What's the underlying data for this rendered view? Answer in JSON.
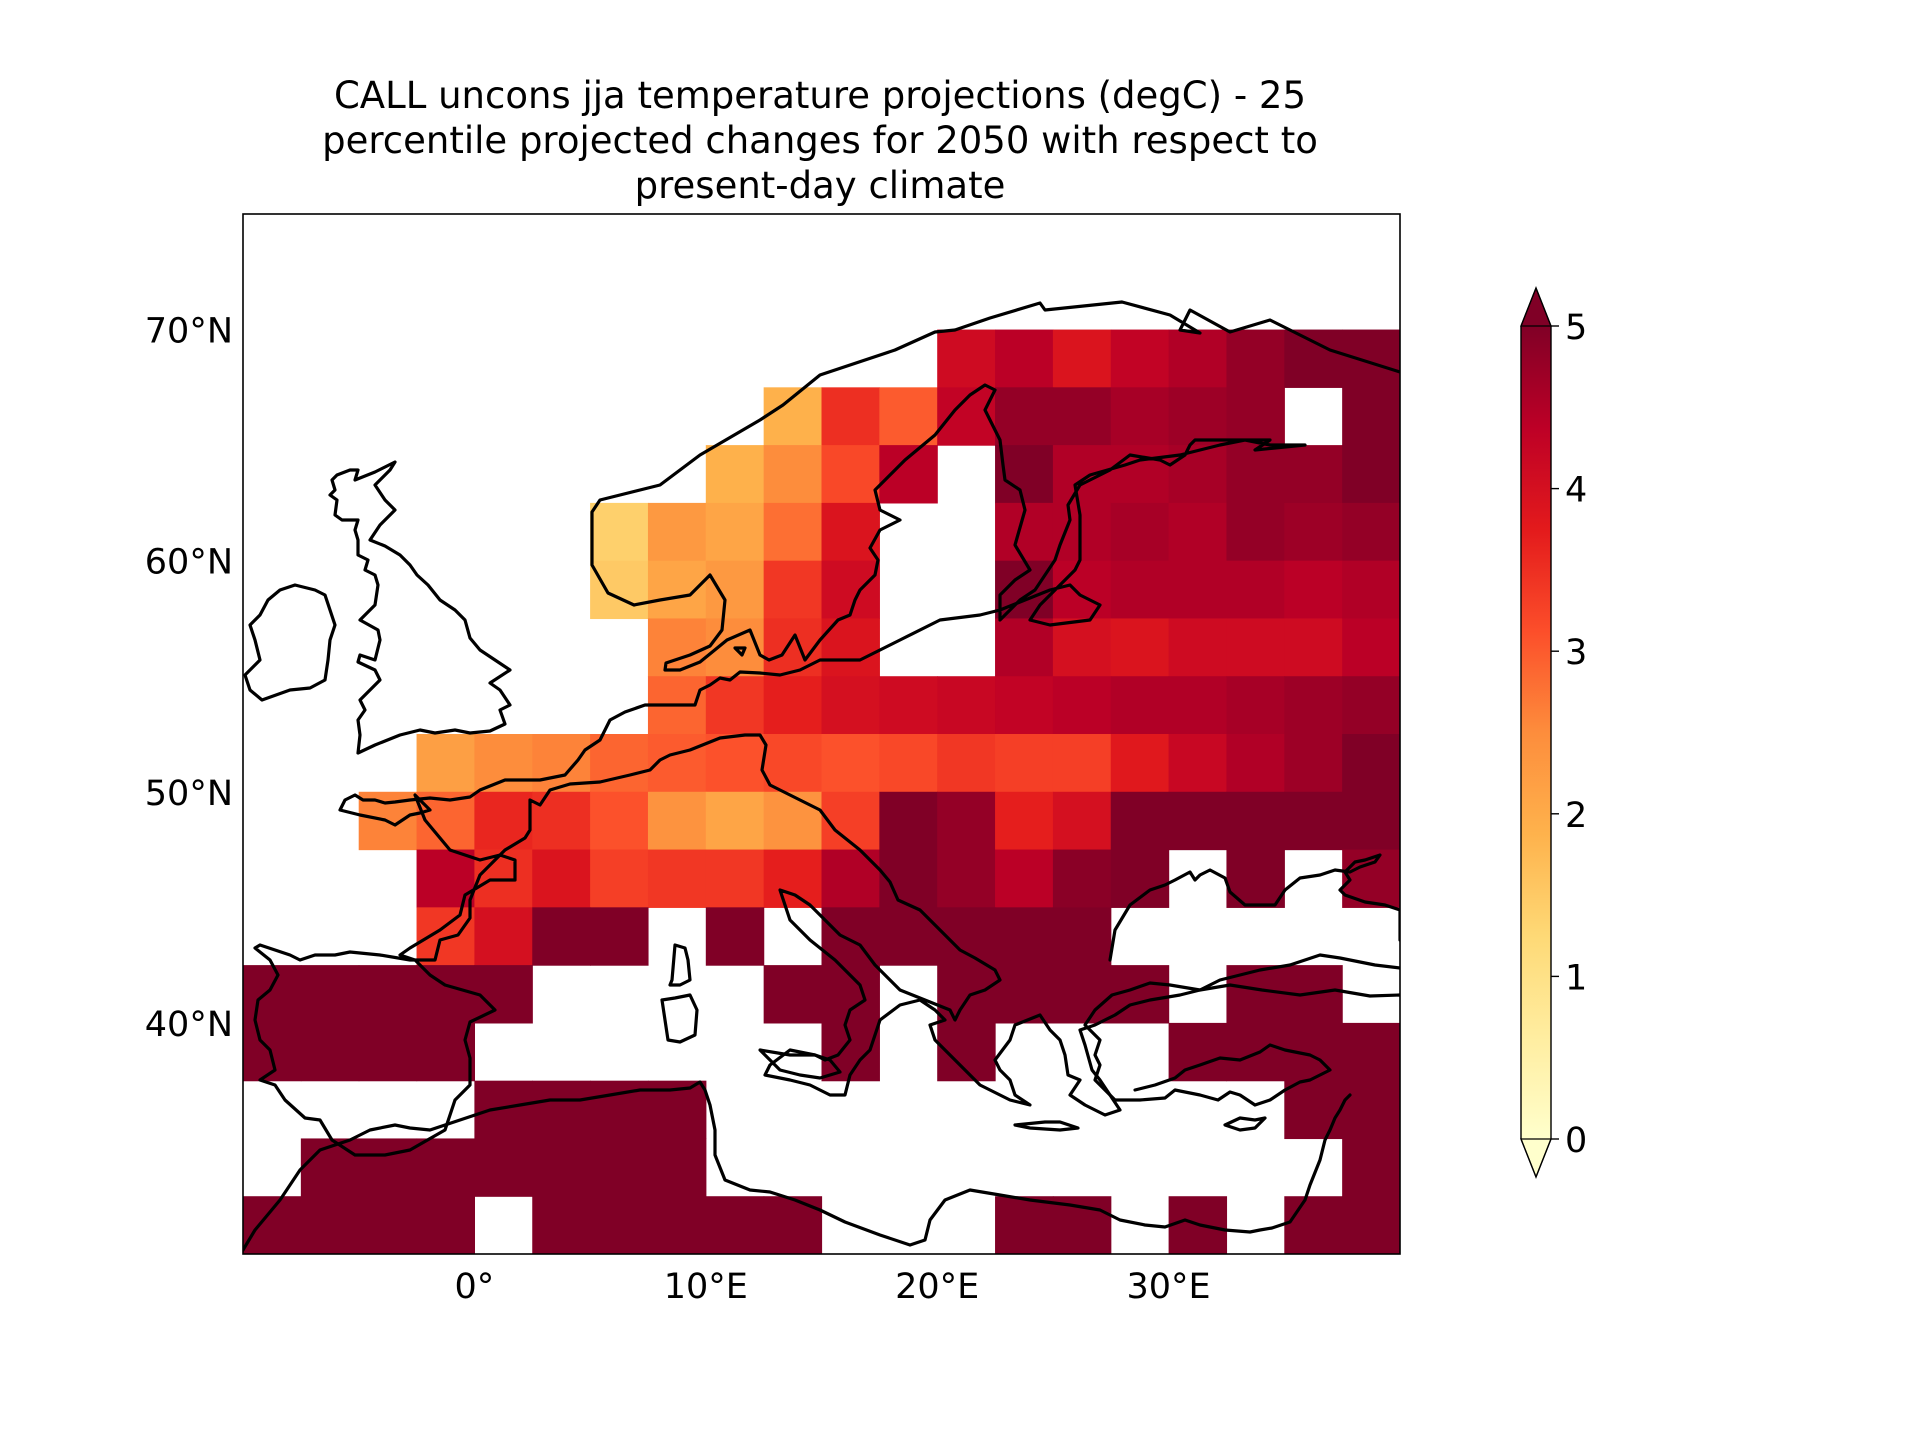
{
  "title_lines": [
    "CALL uncons jja temperature projections (degC) - 25",
    "percentile projected changes for 2050 with respect to",
    "present-day climate"
  ],
  "map": {
    "extent": {
      "lon": [
        -10,
        40
      ],
      "lat": [
        30,
        75
      ]
    },
    "grid_resolution_deg": 2.5,
    "lat_ticks": [
      {
        "value": 70,
        "label": "70°N"
      },
      {
        "value": 60,
        "label": "60°N"
      },
      {
        "value": 50,
        "label": "50°N"
      },
      {
        "value": 40,
        "label": "40°N"
      }
    ],
    "lon_ticks": [
      {
        "value": 0,
        "label": "0°"
      },
      {
        "value": 10,
        "label": "10°E"
      },
      {
        "value": 20,
        "label": "20°E"
      },
      {
        "value": 30,
        "label": "30°E"
      }
    ],
    "grid_rows": [
      {
        "lat": 68.75,
        "values": [
          null,
          null,
          null,
          null,
          null,
          null,
          null,
          null,
          null,
          null,
          null,
          null,
          null,
          null,
          null,
          null,
          null,
          null,
          null,
          null,
          null,
          null,
          null,
          null,
          null,
          null,
          null,
          null,
          null,
          null,
          null,
          null,
          null,
          null,
          null,
          null,
          null,
          null,
          null,
          null,
          null,
          null,
          4.1,
          4.4,
          3.9,
          4.3,
          4.5,
          4.8,
          5.0,
          5.0
        ]
      },
      {
        "lat": 66.25,
        "values": [
          null,
          null,
          null,
          null,
          null,
          null,
          null,
          null,
          null,
          null,
          null,
          null,
          null,
          null,
          null,
          null,
          null,
          null,
          null,
          null,
          null,
          null,
          null,
          null,
          null,
          null,
          null,
          null,
          null,
          null,
          null,
          null,
          null,
          null,
          null,
          null,
          null,
          null,
          1.9,
          3.5,
          3.0,
          4.3,
          4.8,
          4.8,
          4.6,
          4.7,
          4.8,
          null,
          5.0
        ]
      },
      {
        "lat": 63.75,
        "values": [
          null,
          null,
          null,
          null,
          null,
          null,
          null,
          null,
          null,
          null,
          null,
          null,
          null,
          null,
          null,
          null,
          null,
          null,
          null,
          null,
          null,
          null,
          null,
          null,
          null,
          null,
          null,
          null,
          null,
          null,
          null,
          null,
          null,
          null,
          null,
          null,
          null,
          1.9,
          2.5,
          3.2,
          4.4,
          null,
          5.0,
          4.5,
          4.5,
          4.6,
          4.8,
          4.8,
          5.0
        ]
      },
      {
        "lat": 61.25,
        "values": [
          null,
          null,
          null,
          null,
          null,
          null,
          null,
          null,
          null,
          null,
          null,
          null,
          null,
          null,
          null,
          null,
          null,
          null,
          null,
          null,
          null,
          null,
          null,
          null,
          null,
          null,
          null,
          null,
          null,
          null,
          null,
          null,
          null,
          null,
          null,
          1.4,
          2.3,
          2.1,
          2.8,
          3.9,
          null,
          null,
          4.5,
          4.5,
          4.6,
          4.5,
          4.8,
          4.7,
          4.8
        ]
      },
      {
        "lat": 58.75,
        "values": [
          null,
          null,
          null,
          null,
          null,
          null,
          null,
          null,
          null,
          null,
          null,
          null,
          null,
          null,
          null,
          null,
          null,
          null,
          null,
          null,
          null,
          null,
          null,
          null,
          null,
          null,
          null,
          null,
          null,
          null,
          null,
          null,
          null,
          null,
          null,
          1.5,
          2.1,
          2.3,
          3.4,
          4.1,
          null,
          null,
          5.0,
          4.4,
          4.5,
          4.5,
          4.5,
          4.4,
          4.5
        ]
      },
      {
        "lat": 56.25,
        "values": [
          null,
          null,
          null,
          1.6,
          null,
          null,
          null,
          null,
          null,
          null,
          null,
          null,
          null,
          null,
          null,
          null,
          null,
          null,
          null,
          null,
          null,
          null,
          null,
          null,
          null,
          null,
          null,
          null,
          null,
          null,
          null,
          null,
          null,
          null,
          null,
          null,
          2.6,
          2.5,
          3.5,
          3.9,
          null,
          null,
          4.5,
          4.0,
          3.9,
          4.1,
          4.1,
          4.1,
          4.4
        ]
      },
      {
        "lat": 53.75,
        "values": [
          1.3,
          1.4,
          null,
          2.1,
          2.5,
          null,
          null,
          null,
          null,
          null,
          null,
          null,
          null,
          null,
          null,
          null,
          null,
          null,
          null,
          null,
          null,
          null,
          null,
          null,
          null,
          null,
          null,
          null,
          null,
          null,
          null,
          null,
          null,
          null,
          null,
          null,
          2.9,
          3.4,
          3.7,
          4.0,
          4.1,
          4.2,
          4.3,
          4.4,
          4.5,
          4.5,
          4.6,
          4.7,
          4.8
        ]
      },
      {
        "lat": 51.25,
        "values": [
          null,
          null,
          null,
          2.2,
          2.5,
          2.6,
          2.9,
          3.0,
          3.1,
          3.2,
          3.1,
          3.2,
          3.4,
          3.3,
          3.3,
          3.8,
          4.2,
          4.5,
          4.7,
          5.0,
          5.0,
          5.0,
          5.0
        ]
      },
      {
        "lat": 48.75,
        "values": [
          null,
          null,
          2.6,
          2.9,
          3.6,
          3.5,
          3.1,
          2.4,
          2.1,
          2.4,
          3.3,
          5.0,
          4.8,
          3.7,
          4.0,
          5.0,
          5.0,
          5.0,
          5.0,
          5.0
        ]
      },
      {
        "lat": 46.25,
        "values": [
          null,
          null,
          null,
          4.4,
          3.5,
          3.9,
          3.3,
          3.4,
          3.4,
          3.7,
          4.5,
          5.0,
          4.8,
          4.4,
          4.9,
          5.0,
          null,
          5.0,
          null,
          4.8,
          null,
          5.0
        ]
      },
      {
        "lat": 43.75,
        "values": [
          null,
          null,
          null,
          3.4,
          4.0,
          5.0,
          5.0,
          null,
          5.0,
          null,
          5.0,
          5.0,
          5.0,
          5.0,
          5.0,
          null,
          null,
          null,
          null,
          null
        ]
      },
      {
        "lat": 41.25,
        "values": [
          5.0,
          5.0,
          5.0,
          5.0,
          5.0,
          null,
          null,
          null,
          null,
          5.0,
          5.0,
          null,
          5.0,
          5.0,
          5.0,
          5.0,
          null,
          5.0,
          5.0,
          null
        ]
      },
      {
        "lat": 38.75,
        "values": [
          5.0,
          5.0,
          5.0,
          5.0,
          null,
          null,
          null,
          null,
          null,
          null,
          5.0,
          null,
          5.0,
          null,
          null,
          null,
          5.0,
          5.0,
          5.0,
          5.0
        ]
      },
      {
        "lat": 36.25,
        "values": [
          null,
          null,
          null,
          null,
          5.0,
          5.0,
          5.0,
          5.0,
          null,
          null,
          null,
          null,
          null,
          null,
          null,
          null,
          null,
          null,
          5.0,
          5.0
        ]
      },
      {
        "lat": 33.75,
        "values": [
          null,
          5.0,
          5.0,
          5.0,
          5.0,
          5.0,
          5.0,
          5.0,
          null,
          null,
          null,
          null,
          null,
          null,
          null,
          null,
          null,
          null,
          null,
          5.0
        ]
      },
      {
        "lat": 31.25,
        "values": [
          5.0,
          5.0,
          5.0,
          5.0,
          null,
          5.0,
          5.0,
          5.0,
          5.0,
          5.0,
          null,
          null,
          null,
          5.0,
          5.0,
          null,
          5.0,
          null,
          5.0,
          5.0
        ]
      }
    ],
    "coastline_color": "#000000"
  },
  "colorbar": {
    "min": 0,
    "max": 5,
    "ticks": [
      0,
      1,
      2,
      3,
      4,
      5
    ],
    "tick_labels": [
      "0",
      "1",
      "2",
      "3",
      "4",
      "5"
    ],
    "extend": "both",
    "colormap": "YlOrRd",
    "colormap_stops": [
      "#ffffcc",
      "#ffeda0",
      "#fed976",
      "#feb24c",
      "#fd8d3c",
      "#fc4e2a",
      "#e31a1c",
      "#bd0026",
      "#800026"
    ]
  }
}
